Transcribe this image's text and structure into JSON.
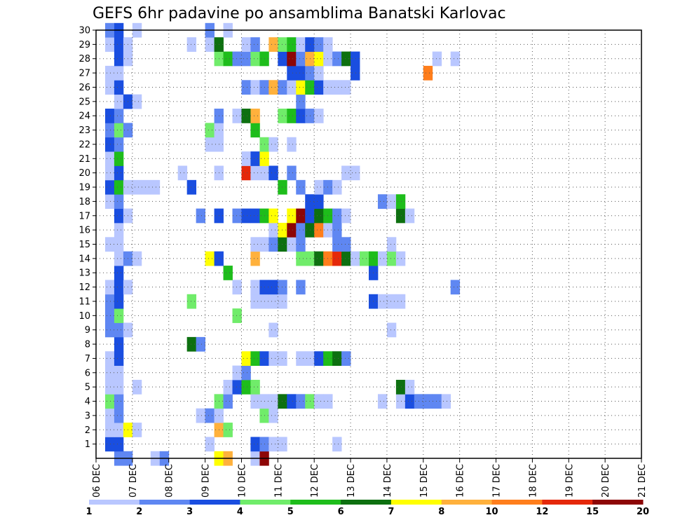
{
  "chart_data": {
    "type": "heatmap",
    "title": "GEFS 6hr padavine po ansamblima Banatski Karlovac",
    "y_ticks": [
      1,
      2,
      3,
      4,
      5,
      6,
      7,
      8,
      9,
      10,
      11,
      12,
      13,
      14,
      15,
      16,
      17,
      18,
      19,
      20,
      21,
      22,
      23,
      24,
      25,
      26,
      27,
      28,
      29,
      30
    ],
    "x_ticks": [
      "06 DEC",
      "07 DEC",
      "08 DEC",
      "09 DEC",
      "10 DEC",
      "11 DEC",
      "12 DEC",
      "13 DEC",
      "14 DEC",
      "15 DEC",
      "16 DEC",
      "17 DEC",
      "18 DEC",
      "19 DEC",
      "20 DEC",
      "21 DEC"
    ],
    "x_range_days": [
      0,
      15
    ],
    "y_range": [
      0,
      30
    ],
    "grid": true,
    "colorbar": {
      "labels": [
        "1",
        "2",
        "3",
        "4",
        "5",
        "6",
        "7",
        "8",
        "10",
        "12",
        "15",
        "20"
      ],
      "colors": [
        "#b9c7ff",
        "#5f87f2",
        "#1a4ee0",
        "#70ec6a",
        "#1ebd1b",
        "#0d7010",
        "#ffff00",
        "#ffb13c",
        "#ff7e1c",
        "#e5280a",
        "#8d0606"
      ]
    },
    "cells": [
      [
        0,
        2,
        1
      ],
      [
        0,
        3,
        1
      ],
      [
        0,
        6,
        0
      ],
      [
        0,
        7,
        1
      ],
      [
        0,
        13,
        6
      ],
      [
        0,
        14,
        7
      ],
      [
        0,
        17,
        0
      ],
      [
        0,
        18,
        10
      ],
      [
        1,
        1,
        2
      ],
      [
        1,
        2,
        2
      ],
      [
        1,
        12,
        0
      ],
      [
        1,
        17,
        2
      ],
      [
        1,
        18,
        1
      ],
      [
        1,
        19,
        0
      ],
      [
        1,
        20,
        0
      ],
      [
        1,
        26,
        0
      ],
      [
        2,
        1,
        0
      ],
      [
        2,
        2,
        0
      ],
      [
        2,
        3,
        6
      ],
      [
        2,
        4,
        0
      ],
      [
        2,
        13,
        7
      ],
      [
        2,
        14,
        3
      ],
      [
        3,
        1,
        0
      ],
      [
        3,
        2,
        1
      ],
      [
        3,
        11,
        0
      ],
      [
        3,
        12,
        1
      ],
      [
        3,
        13,
        0
      ],
      [
        3,
        18,
        3
      ],
      [
        3,
        19,
        0
      ],
      [
        4,
        1,
        3
      ],
      [
        4,
        2,
        1
      ],
      [
        4,
        13,
        3
      ],
      [
        4,
        14,
        1
      ],
      [
        4,
        17,
        0
      ],
      [
        4,
        18,
        0
      ],
      [
        4,
        19,
        0
      ],
      [
        4,
        20,
        5
      ],
      [
        4,
        21,
        2
      ],
      [
        4,
        22,
        1
      ],
      [
        4,
        23,
        3
      ],
      [
        4,
        24,
        0
      ],
      [
        4,
        25,
        0
      ],
      [
        4,
        31,
        0
      ],
      [
        4,
        33,
        0
      ],
      [
        4,
        34,
        2
      ],
      [
        4,
        35,
        1
      ],
      [
        4,
        36,
        1
      ],
      [
        4,
        37,
        1
      ],
      [
        4,
        38,
        0
      ],
      [
        5,
        1,
        0
      ],
      [
        5,
        2,
        0
      ],
      [
        5,
        4,
        0
      ],
      [
        5,
        14,
        0
      ],
      [
        5,
        15,
        2
      ],
      [
        5,
        16,
        4
      ],
      [
        5,
        17,
        3
      ],
      [
        5,
        33,
        5
      ],
      [
        5,
        34,
        0
      ],
      [
        6,
        1,
        0
      ],
      [
        6,
        2,
        0
      ],
      [
        6,
        15,
        0
      ],
      [
        6,
        16,
        1
      ],
      [
        7,
        1,
        0
      ],
      [
        7,
        2,
        2
      ],
      [
        7,
        16,
        6
      ],
      [
        7,
        17,
        4
      ],
      [
        7,
        18,
        2
      ],
      [
        7,
        19,
        0
      ],
      [
        7,
        20,
        0
      ],
      [
        7,
        22,
        0
      ],
      [
        7,
        23,
        0
      ],
      [
        7,
        24,
        2
      ],
      [
        7,
        25,
        4
      ],
      [
        7,
        26,
        5
      ],
      [
        7,
        27,
        1
      ],
      [
        8,
        2,
        2
      ],
      [
        8,
        10,
        5
      ],
      [
        8,
        11,
        1
      ],
      [
        9,
        1,
        1
      ],
      [
        9,
        2,
        1
      ],
      [
        9,
        3,
        0
      ],
      [
        9,
        19,
        0
      ],
      [
        9,
        32,
        0
      ],
      [
        10,
        1,
        1
      ],
      [
        10,
        2,
        3
      ],
      [
        10,
        15,
        3
      ],
      [
        11,
        1,
        1
      ],
      [
        11,
        2,
        2
      ],
      [
        11,
        10,
        3
      ],
      [
        11,
        17,
        0
      ],
      [
        11,
        18,
        0
      ],
      [
        11,
        19,
        0
      ],
      [
        11,
        20,
        0
      ],
      [
        11,
        30,
        2
      ],
      [
        11,
        31,
        0
      ],
      [
        11,
        32,
        0
      ],
      [
        11,
        33,
        0
      ],
      [
        12,
        1,
        0
      ],
      [
        12,
        2,
        2
      ],
      [
        12,
        3,
        0
      ],
      [
        12,
        15,
        0
      ],
      [
        12,
        17,
        0
      ],
      [
        12,
        18,
        2
      ],
      [
        12,
        19,
        2
      ],
      [
        12,
        20,
        1
      ],
      [
        12,
        22,
        1
      ],
      [
        12,
        39,
        1
      ],
      [
        13,
        2,
        2
      ],
      [
        13,
        14,
        4
      ],
      [
        13,
        30,
        2
      ],
      [
        14,
        2,
        0
      ],
      [
        14,
        3,
        1
      ],
      [
        14,
        4,
        0
      ],
      [
        14,
        12,
        6
      ],
      [
        14,
        13,
        2
      ],
      [
        14,
        17,
        7
      ],
      [
        14,
        22,
        3
      ],
      [
        14,
        23,
        3
      ],
      [
        14,
        24,
        5
      ],
      [
        14,
        25,
        8
      ],
      [
        14,
        26,
        9
      ],
      [
        14,
        27,
        5
      ],
      [
        14,
        28,
        0
      ],
      [
        14,
        29,
        3
      ],
      [
        14,
        30,
        4
      ],
      [
        14,
        31,
        0
      ],
      [
        14,
        32,
        3
      ],
      [
        14,
        33,
        0
      ],
      [
        15,
        1,
        0
      ],
      [
        15,
        2,
        0
      ],
      [
        15,
        17,
        0
      ],
      [
        15,
        18,
        0
      ],
      [
        15,
        19,
        1
      ],
      [
        15,
        20,
        5
      ],
      [
        15,
        21,
        0
      ],
      [
        15,
        22,
        1
      ],
      [
        15,
        26,
        1
      ],
      [
        15,
        27,
        1
      ],
      [
        15,
        32,
        0
      ],
      [
        16,
        2,
        0
      ],
      [
        16,
        19,
        0
      ],
      [
        16,
        20,
        6
      ],
      [
        16,
        21,
        10
      ],
      [
        16,
        22,
        1
      ],
      [
        16,
        23,
        5
      ],
      [
        16,
        24,
        8
      ],
      [
        16,
        25,
        0
      ],
      [
        16,
        26,
        1
      ],
      [
        17,
        2,
        2
      ],
      [
        17,
        3,
        0
      ],
      [
        17,
        11,
        1
      ],
      [
        17,
        13,
        2
      ],
      [
        17,
        15,
        1
      ],
      [
        17,
        16,
        2
      ],
      [
        17,
        17,
        2
      ],
      [
        17,
        18,
        4
      ],
      [
        17,
        19,
        6
      ],
      [
        17,
        21,
        6
      ],
      [
        17,
        22,
        10
      ],
      [
        17,
        23,
        2
      ],
      [
        17,
        24,
        5
      ],
      [
        17,
        25,
        4
      ],
      [
        17,
        26,
        1
      ],
      [
        17,
        27,
        0
      ],
      [
        17,
        33,
        5
      ],
      [
        17,
        34,
        0
      ],
      [
        18,
        1,
        0
      ],
      [
        18,
        2,
        1
      ],
      [
        18,
        23,
        2
      ],
      [
        18,
        24,
        2
      ],
      [
        18,
        31,
        1
      ],
      [
        18,
        32,
        0
      ],
      [
        18,
        33,
        4
      ],
      [
        19,
        1,
        2
      ],
      [
        19,
        2,
        4
      ],
      [
        19,
        3,
        0
      ],
      [
        19,
        4,
        0
      ],
      [
        19,
        5,
        0
      ],
      [
        19,
        6,
        0
      ],
      [
        19,
        10,
        2
      ],
      [
        19,
        20,
        4
      ],
      [
        19,
        22,
        1
      ],
      [
        19,
        24,
        0
      ],
      [
        19,
        25,
        1
      ],
      [
        19,
        26,
        0
      ],
      [
        20,
        1,
        0
      ],
      [
        20,
        2,
        2
      ],
      [
        20,
        9,
        0
      ],
      [
        20,
        13,
        0
      ],
      [
        20,
        16,
        9
      ],
      [
        20,
        17,
        0
      ],
      [
        20,
        18,
        0
      ],
      [
        20,
        19,
        2
      ],
      [
        20,
        21,
        1
      ],
      [
        20,
        27,
        0
      ],
      [
        20,
        28,
        0
      ],
      [
        21,
        1,
        0
      ],
      [
        21,
        2,
        4
      ],
      [
        21,
        16,
        0
      ],
      [
        21,
        17,
        2
      ],
      [
        21,
        18,
        6
      ],
      [
        22,
        1,
        2
      ],
      [
        22,
        2,
        1
      ],
      [
        22,
        12,
        0
      ],
      [
        22,
        13,
        0
      ],
      [
        22,
        18,
        3
      ],
      [
        22,
        19,
        0
      ],
      [
        22,
        21,
        0
      ],
      [
        23,
        1,
        1
      ],
      [
        23,
        2,
        3
      ],
      [
        23,
        3,
        1
      ],
      [
        23,
        12,
        3
      ],
      [
        23,
        13,
        0
      ],
      [
        23,
        17,
        4
      ],
      [
        24,
        1,
        2
      ],
      [
        24,
        2,
        1
      ],
      [
        24,
        13,
        1
      ],
      [
        24,
        15,
        0
      ],
      [
        24,
        16,
        5
      ],
      [
        24,
        17,
        7
      ],
      [
        24,
        20,
        3
      ],
      [
        24,
        21,
        4
      ],
      [
        24,
        22,
        2
      ],
      [
        24,
        23,
        1
      ],
      [
        24,
        24,
        0
      ],
      [
        25,
        2,
        0
      ],
      [
        25,
        3,
        2
      ],
      [
        25,
        4,
        0
      ],
      [
        25,
        22,
        1
      ],
      [
        26,
        1,
        0
      ],
      [
        26,
        2,
        2
      ],
      [
        26,
        16,
        1
      ],
      [
        26,
        17,
        0
      ],
      [
        26,
        18,
        1
      ],
      [
        26,
        19,
        7
      ],
      [
        26,
        20,
        1
      ],
      [
        26,
        21,
        0
      ],
      [
        26,
        22,
        6
      ],
      [
        26,
        23,
        4
      ],
      [
        26,
        24,
        2
      ],
      [
        26,
        25,
        0
      ],
      [
        26,
        26,
        0
      ],
      [
        26,
        27,
        0
      ],
      [
        27,
        1,
        0
      ],
      [
        27,
        2,
        0
      ],
      [
        27,
        21,
        2
      ],
      [
        27,
        22,
        2
      ],
      [
        27,
        23,
        1
      ],
      [
        27,
        24,
        0
      ],
      [
        27,
        28,
        2
      ],
      [
        27,
        36,
        8
      ],
      [
        28,
        2,
        2
      ],
      [
        28,
        3,
        0
      ],
      [
        28,
        13,
        3
      ],
      [
        28,
        14,
        4
      ],
      [
        28,
        15,
        1
      ],
      [
        28,
        16,
        1
      ],
      [
        28,
        17,
        3
      ],
      [
        28,
        18,
        4
      ],
      [
        28,
        20,
        2
      ],
      [
        28,
        21,
        10
      ],
      [
        28,
        22,
        1
      ],
      [
        28,
        23,
        7
      ],
      [
        28,
        24,
        6
      ],
      [
        28,
        25,
        0
      ],
      [
        28,
        26,
        1
      ],
      [
        28,
        27,
        5
      ],
      [
        28,
        28,
        2
      ],
      [
        28,
        37,
        0
      ],
      [
        28,
        39,
        0
      ],
      [
        29,
        1,
        0
      ],
      [
        29,
        2,
        2
      ],
      [
        29,
        3,
        0
      ],
      [
        29,
        10,
        0
      ],
      [
        29,
        12,
        0
      ],
      [
        29,
        13,
        5
      ],
      [
        29,
        16,
        0
      ],
      [
        29,
        17,
        1
      ],
      [
        29,
        19,
        7
      ],
      [
        29,
        20,
        3
      ],
      [
        29,
        21,
        4
      ],
      [
        29,
        22,
        0
      ],
      [
        29,
        23,
        2
      ],
      [
        29,
        24,
        1
      ],
      [
        29,
        25,
        0
      ],
      [
        30,
        1,
        1
      ],
      [
        30,
        2,
        2
      ],
      [
        30,
        4,
        0
      ],
      [
        30,
        12,
        1
      ],
      [
        30,
        14,
        0
      ]
    ]
  }
}
